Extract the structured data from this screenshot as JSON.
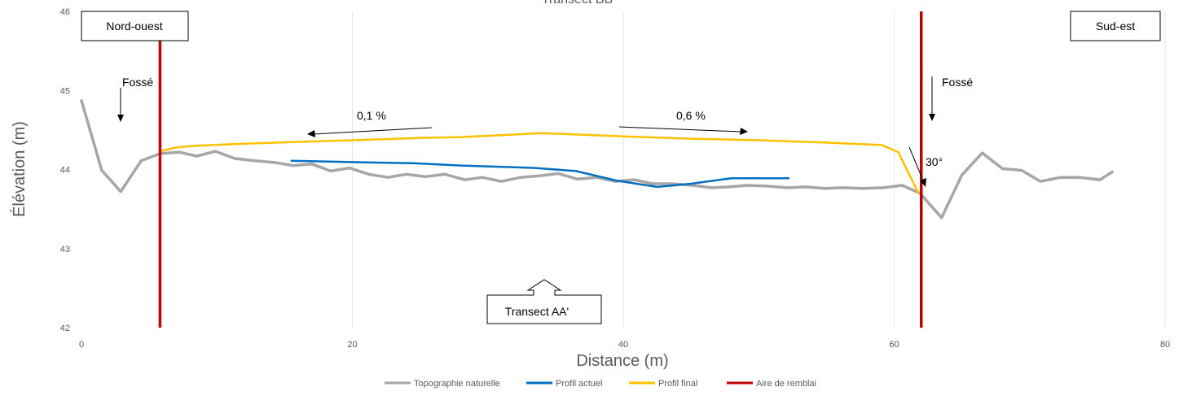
{
  "chart_data": {
    "type": "line",
    "title": "Transect BB'",
    "xlabel": "Distance (m)",
    "ylabel": "Élévation (m)",
    "xlim": [
      0,
      80
    ],
    "ylim": [
      42,
      46
    ],
    "x_ticks": [
      0,
      20,
      40,
      60,
      80
    ],
    "y_ticks": [
      42,
      43,
      44,
      45,
      46
    ],
    "grid": "vertical",
    "legend_position": "bottom",
    "series": [
      {
        "name": "Topographie naturelle",
        "color": "#A6A6A6",
        "points": [
          [
            0,
            44.87
          ],
          [
            1.5,
            43.99
          ],
          [
            2.9,
            43.72
          ],
          [
            4.4,
            44.11
          ],
          [
            5.8,
            44.2
          ],
          [
            7.2,
            44.22
          ],
          [
            8.5,
            44.17
          ],
          [
            9.9,
            44.23
          ],
          [
            11.3,
            44.14
          ],
          [
            12.8,
            44.11
          ],
          [
            14.2,
            44.09
          ],
          [
            15.6,
            44.05
          ],
          [
            17,
            44.07
          ],
          [
            18.4,
            43.98
          ],
          [
            19.8,
            44.02
          ],
          [
            21.2,
            43.94
          ],
          [
            22.6,
            43.9
          ],
          [
            24,
            43.94
          ],
          [
            25.4,
            43.91
          ],
          [
            26.8,
            43.94
          ],
          [
            28.3,
            43.87
          ],
          [
            29.6,
            43.9
          ],
          [
            31,
            43.85
          ],
          [
            32.4,
            43.9
          ],
          [
            33.8,
            43.92
          ],
          [
            35.2,
            43.95
          ],
          [
            36.6,
            43.88
          ],
          [
            38,
            43.9
          ],
          [
            39.4,
            43.85
          ],
          [
            40.8,
            43.87
          ],
          [
            42.2,
            43.82
          ],
          [
            43.6,
            43.82
          ],
          [
            45.1,
            43.8
          ],
          [
            46.5,
            43.77
          ],
          [
            47.8,
            43.78
          ],
          [
            49.2,
            43.8
          ],
          [
            50.6,
            43.79
          ],
          [
            52.1,
            43.77
          ],
          [
            53.5,
            43.78
          ],
          [
            54.9,
            43.76
          ],
          [
            56.2,
            43.77
          ],
          [
            57.7,
            43.76
          ],
          [
            59.2,
            43.77
          ],
          [
            60.6,
            43.8
          ],
          [
            61.9,
            43.7
          ],
          [
            63.5,
            43.39
          ],
          [
            65,
            43.93
          ],
          [
            66.5,
            44.21
          ],
          [
            68,
            44.01
          ],
          [
            69.4,
            43.99
          ],
          [
            70.8,
            43.85
          ],
          [
            72.3,
            43.9
          ],
          [
            73.7,
            43.9
          ],
          [
            75.2,
            43.87
          ],
          [
            76.1,
            43.97
          ]
        ]
      },
      {
        "name": "Profil actuel",
        "color": "#0070C0",
        "points": [
          [
            15.5,
            44.11
          ],
          [
            21,
            44.09
          ],
          [
            24.5,
            44.08
          ],
          [
            28,
            44.05
          ],
          [
            33.5,
            44.02
          ],
          [
            36.5,
            43.98
          ],
          [
            39.5,
            43.86
          ],
          [
            42.5,
            43.78
          ],
          [
            45,
            43.82
          ],
          [
            48,
            43.89
          ],
          [
            52.2,
            43.89
          ]
        ]
      },
      {
        "name": "Profil final",
        "color": "#FFC000",
        "points": [
          [
            5.8,
            44.23
          ],
          [
            7,
            44.28
          ],
          [
            8.5,
            44.3
          ],
          [
            11,
            44.32
          ],
          [
            16,
            44.35
          ],
          [
            20,
            44.37
          ],
          [
            25,
            44.4
          ],
          [
            28,
            44.41
          ],
          [
            34,
            44.46
          ],
          [
            40,
            44.42
          ],
          [
            45,
            44.39
          ],
          [
            50,
            44.37
          ],
          [
            55,
            44.34
          ],
          [
            59.1,
            44.31
          ],
          [
            60.3,
            44.22
          ],
          [
            61.8,
            43.7
          ]
        ]
      },
      {
        "name": "Aire de remblai",
        "color": "#C00000",
        "points": []
      }
    ],
    "fill_area_lines": [
      {
        "x": 5.8,
        "y0": 42,
        "y1": 46
      },
      {
        "x": 62,
        "y0": 42,
        "y1": 46
      }
    ]
  },
  "annotations": {
    "nord_ouest": "Nord-ouest",
    "sud_est": "Sud-est",
    "fosse_left": "Fossé",
    "fosse_right": "Fossé",
    "slope_left": "0,1 %",
    "slope_right": "0,6 %",
    "angle": "30°",
    "transect_aa": "Transect AA'"
  }
}
